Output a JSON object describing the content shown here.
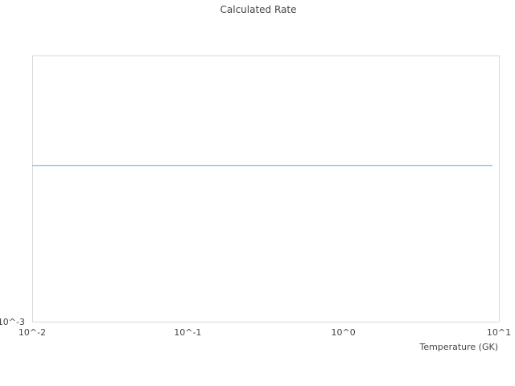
{
  "chart_data": {
    "type": "line",
    "title": "Calculated Rate",
    "xlabel": "Temperature (GK)",
    "ylabel": "",
    "x_scale": "log",
    "y_scale": "log",
    "xlim": [
      0.01,
      10
    ],
    "ylim": [
      0.001,
      0.01
    ],
    "x_ticks": [
      {
        "value": 0.01,
        "label": "10^-2"
      },
      {
        "value": 0.1,
        "label": "10^-1"
      },
      {
        "value": 1,
        "label": "10^0"
      },
      {
        "value": 10,
        "label": "10^1"
      }
    ],
    "y_ticks": [
      {
        "value": 0.001,
        "label": "10^-3"
      }
    ],
    "grid": false,
    "series": [
      {
        "color": "#5aa9f0",
        "x": [
          0.01,
          9.1
        ],
        "y": [
          0.00386,
          0.00386
        ]
      }
    ]
  }
}
